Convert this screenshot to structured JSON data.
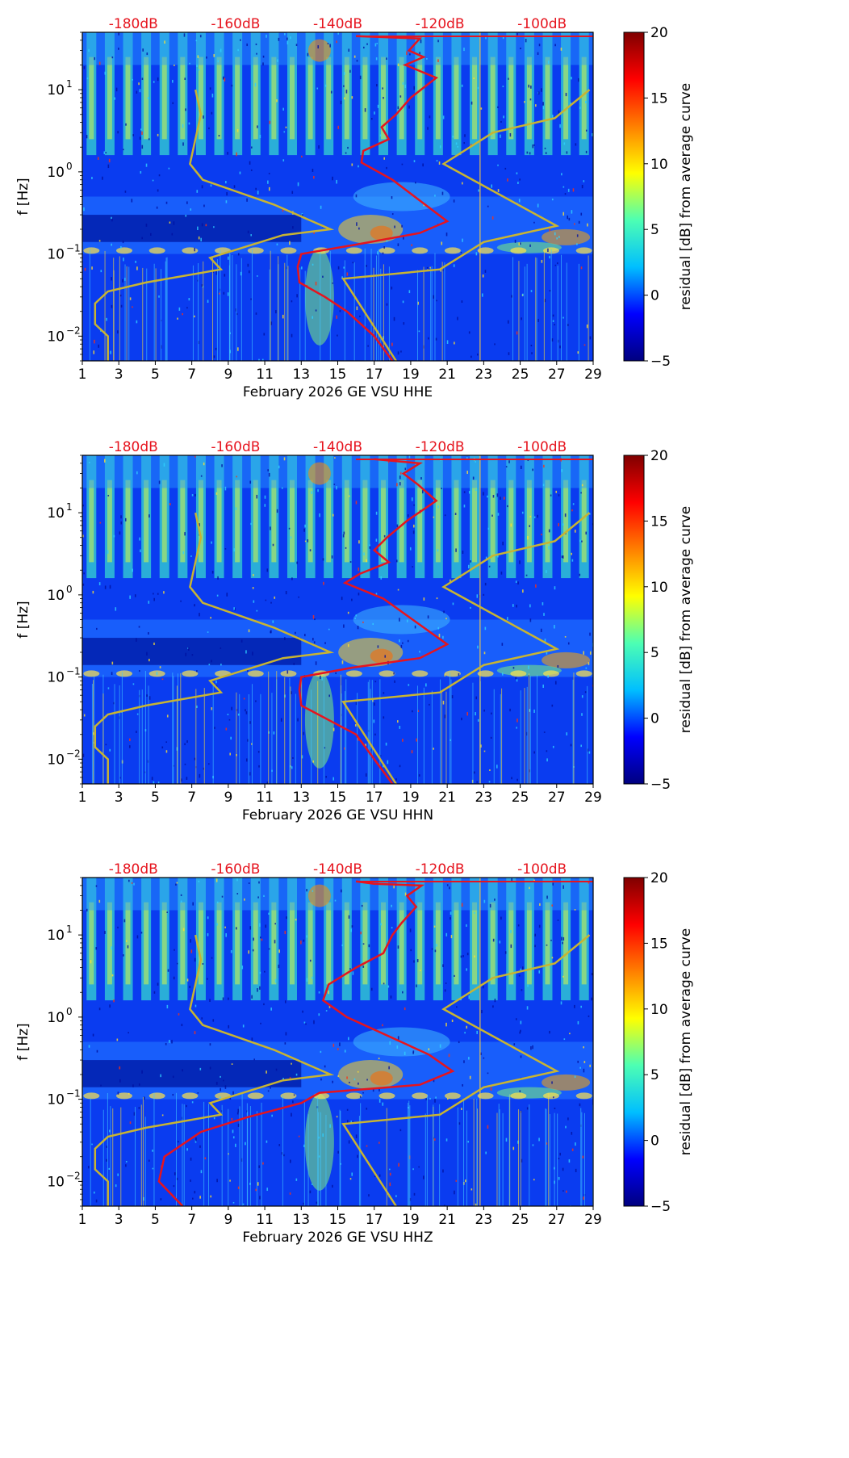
{
  "colors": {
    "noise_model": "#c8b432",
    "median": "#e6141e",
    "db_label": "#e6141e",
    "colormap": [
      "#00007f",
      "#0000ff",
      "#00bfff",
      "#4dffb3",
      "#ffff00",
      "#ff7f00",
      "#ff0000",
      "#7f0000"
    ]
  },
  "chart_data": [
    {
      "type": "heatmap",
      "channel": "HHE",
      "title": "",
      "xlabel": "February 2026 GE VSU  HHE",
      "ylabel": "f [Hz]",
      "x_ticks": [
        "1",
        "3",
        "5",
        "7",
        "9",
        "11",
        "13",
        "15",
        "17",
        "19",
        "21",
        "23",
        "25",
        "27",
        "29"
      ],
      "x_range": [
        1,
        29
      ],
      "y_range_hz": [
        0.005,
        50
      ],
      "y_ticks": [
        {
          "exp": -2,
          "label": "10",
          "sup": "−2",
          "value": 0.01
        },
        {
          "exp": -1,
          "label": "10",
          "sup": "−1",
          "value": 0.1
        },
        {
          "exp": 0,
          "label": "10",
          "sup": "0",
          "value": 1
        },
        {
          "exp": 1,
          "label": "10",
          "sup": "1",
          "value": 10
        }
      ],
      "top_labels": [
        "-180dB",
        "-160dB",
        "-140dB",
        "-120dB",
        "-100dB"
      ],
      "top_label_positions_day": [
        3.8,
        9.4,
        15.0,
        20.6,
        26.2
      ],
      "colorbar": {
        "label": "residual [dB] from average curve",
        "ticks": [
          "20",
          "15",
          "10",
          "5",
          "0",
          "−5"
        ],
        "min": -5,
        "max": 20
      },
      "noise_model_curve": [
        {
          "day": 7.2,
          "f": 10
        },
        {
          "day": 7.5,
          "f": 5
        },
        {
          "day": 6.9,
          "f": 1.25
        },
        {
          "day": 7.6,
          "f": 0.8
        },
        {
          "day": 11.5,
          "f": 0.4
        },
        {
          "day": 14.6,
          "f": 0.2
        },
        {
          "day": 12.0,
          "f": 0.17
        },
        {
          "day": 8.0,
          "f": 0.09
        },
        {
          "day": 8.6,
          "f": 0.065
        },
        {
          "day": 4.5,
          "f": 0.045
        },
        {
          "day": 2.4,
          "f": 0.035
        },
        {
          "day": 1.7,
          "f": 0.025
        },
        {
          "day": 1.7,
          "f": 0.014
        },
        {
          "day": 2.4,
          "f": 0.01
        },
        {
          "day": 2.4,
          "f": 0.005
        }
      ],
      "noise_model_curve_right": [
        {
          "day": 28.8,
          "f": 10
        },
        {
          "day": 26.9,
          "f": 4.5
        },
        {
          "day": 23.5,
          "f": 3
        },
        {
          "day": 20.8,
          "f": 1.25
        },
        {
          "day": 27.0,
          "f": 0.22
        },
        {
          "day": 23.0,
          "f": 0.14
        },
        {
          "day": 20.6,
          "f": 0.065
        },
        {
          "day": 15.3,
          "f": 0.05
        },
        {
          "day": 18.2,
          "f": 0.005
        }
      ],
      "median_curve": [
        {
          "day": 16.0,
          "f": 45
        },
        {
          "day": 19.5,
          "f": 42
        },
        {
          "day": 18.9,
          "f": 30
        },
        {
          "day": 19.7,
          "f": 25
        },
        {
          "day": 18.7,
          "f": 20
        },
        {
          "day": 20.4,
          "f": 14
        },
        {
          "day": 19.0,
          "f": 8
        },
        {
          "day": 18.2,
          "f": 5
        },
        {
          "day": 17.4,
          "f": 3.5
        },
        {
          "day": 17.8,
          "f": 2.5
        },
        {
          "day": 16.4,
          "f": 1.8
        },
        {
          "day": 16.3,
          "f": 1.3
        },
        {
          "day": 18.0,
          "f": 0.8
        },
        {
          "day": 21.0,
          "f": 0.25
        },
        {
          "day": 19.5,
          "f": 0.18
        },
        {
          "day": 16.0,
          "f": 0.13
        },
        {
          "day": 13.0,
          "f": 0.1
        },
        {
          "day": 12.8,
          "f": 0.07
        },
        {
          "day": 12.9,
          "f": 0.045
        },
        {
          "day": 14.3,
          "f": 0.03
        },
        {
          "day": 15.5,
          "f": 0.02
        },
        {
          "day": 17.0,
          "f": 0.01
        },
        {
          "day": 18.0,
          "f": 0.005
        }
      ]
    },
    {
      "type": "heatmap",
      "channel": "HHN",
      "title": "",
      "xlabel": "February 2026 GE VSU  HHN",
      "ylabel": "f [Hz]",
      "x_ticks": [
        "1",
        "3",
        "5",
        "7",
        "9",
        "11",
        "13",
        "15",
        "17",
        "19",
        "21",
        "23",
        "25",
        "27",
        "29"
      ],
      "x_range": [
        1,
        29
      ],
      "y_range_hz": [
        0.005,
        50
      ],
      "y_ticks": [
        {
          "exp": -2,
          "label": "10",
          "sup": "−2",
          "value": 0.01
        },
        {
          "exp": -1,
          "label": "10",
          "sup": "−1",
          "value": 0.1
        },
        {
          "exp": 0,
          "label": "10",
          "sup": "0",
          "value": 1
        },
        {
          "exp": 1,
          "label": "10",
          "sup": "1",
          "value": 10
        }
      ],
      "top_labels": [
        "-180dB",
        "-160dB",
        "-140dB",
        "-120dB",
        "-100dB"
      ],
      "top_label_positions_day": [
        3.8,
        9.4,
        15.0,
        20.6,
        26.2
      ],
      "colorbar": {
        "label": "residual [dB] from average curve",
        "ticks": [
          "20",
          "15",
          "10",
          "5",
          "0",
          "−5"
        ],
        "min": -5,
        "max": 20
      },
      "noise_model_curve": [
        {
          "day": 7.2,
          "f": 10
        },
        {
          "day": 7.5,
          "f": 5
        },
        {
          "day": 6.9,
          "f": 1.25
        },
        {
          "day": 7.6,
          "f": 0.8
        },
        {
          "day": 11.5,
          "f": 0.4
        },
        {
          "day": 14.6,
          "f": 0.2
        },
        {
          "day": 12.0,
          "f": 0.17
        },
        {
          "day": 8.0,
          "f": 0.09
        },
        {
          "day": 8.6,
          "f": 0.065
        },
        {
          "day": 4.5,
          "f": 0.045
        },
        {
          "day": 2.4,
          "f": 0.035
        },
        {
          "day": 1.7,
          "f": 0.025
        },
        {
          "day": 1.7,
          "f": 0.014
        },
        {
          "day": 2.4,
          "f": 0.01
        },
        {
          "day": 2.4,
          "f": 0.005
        }
      ],
      "noise_model_curve_right": [
        {
          "day": 28.8,
          "f": 10
        },
        {
          "day": 26.9,
          "f": 4.5
        },
        {
          "day": 23.5,
          "f": 3
        },
        {
          "day": 20.8,
          "f": 1.25
        },
        {
          "day": 27.0,
          "f": 0.22
        },
        {
          "day": 23.0,
          "f": 0.14
        },
        {
          "day": 20.6,
          "f": 0.065
        },
        {
          "day": 15.3,
          "f": 0.05
        },
        {
          "day": 18.2,
          "f": 0.005
        }
      ],
      "median_curve": [
        {
          "day": 17.0,
          "f": 45
        },
        {
          "day": 19.5,
          "f": 40
        },
        {
          "day": 18.6,
          "f": 30
        },
        {
          "day": 19.4,
          "f": 22
        },
        {
          "day": 20.4,
          "f": 14
        },
        {
          "day": 18.8,
          "f": 8
        },
        {
          "day": 17.7,
          "f": 5
        },
        {
          "day": 17.0,
          "f": 3.5
        },
        {
          "day": 17.8,
          "f": 2.5
        },
        {
          "day": 16.2,
          "f": 1.8
        },
        {
          "day": 15.4,
          "f": 1.4
        },
        {
          "day": 17.5,
          "f": 0.9
        },
        {
          "day": 21.0,
          "f": 0.25
        },
        {
          "day": 19.5,
          "f": 0.17
        },
        {
          "day": 15.8,
          "f": 0.13
        },
        {
          "day": 13.0,
          "f": 0.1
        },
        {
          "day": 12.9,
          "f": 0.07
        },
        {
          "day": 13.0,
          "f": 0.045
        },
        {
          "day": 14.5,
          "f": 0.03
        },
        {
          "day": 16.0,
          "f": 0.02
        },
        {
          "day": 17.0,
          "f": 0.01
        },
        {
          "day": 18.0,
          "f": 0.005
        }
      ]
    },
    {
      "type": "heatmap",
      "channel": "HHZ",
      "title": "",
      "xlabel": "February 2026 GE VSU  HHZ",
      "ylabel": "f [Hz]",
      "x_ticks": [
        "1",
        "3",
        "5",
        "7",
        "9",
        "11",
        "13",
        "15",
        "17",
        "19",
        "21",
        "23",
        "25",
        "27",
        "29"
      ],
      "x_range": [
        1,
        29
      ],
      "y_range_hz": [
        0.005,
        50
      ],
      "y_ticks": [
        {
          "exp": -2,
          "label": "10",
          "sup": "−2",
          "value": 0.01
        },
        {
          "exp": -1,
          "label": "10",
          "sup": "−1",
          "value": 0.1
        },
        {
          "exp": 0,
          "label": "10",
          "sup": "0",
          "value": 1
        },
        {
          "exp": 1,
          "label": "10",
          "sup": "1",
          "value": 10
        }
      ],
      "top_labels": [
        "-180dB",
        "-160dB",
        "-140dB",
        "-120dB",
        "-100dB"
      ],
      "top_label_positions_day": [
        3.8,
        9.4,
        15.0,
        20.6,
        26.2
      ],
      "colorbar": {
        "label": "residual [dB] from average curve",
        "ticks": [
          "20",
          "15",
          "10",
          "5",
          "0",
          "−5"
        ],
        "min": -5,
        "max": 20
      },
      "noise_model_curve": [
        {
          "day": 7.2,
          "f": 10
        },
        {
          "day": 7.5,
          "f": 5
        },
        {
          "day": 6.9,
          "f": 1.25
        },
        {
          "day": 7.6,
          "f": 0.8
        },
        {
          "day": 11.5,
          "f": 0.4
        },
        {
          "day": 14.6,
          "f": 0.2
        },
        {
          "day": 12.0,
          "f": 0.17
        },
        {
          "day": 8.0,
          "f": 0.09
        },
        {
          "day": 8.6,
          "f": 0.065
        },
        {
          "day": 4.5,
          "f": 0.045
        },
        {
          "day": 2.4,
          "f": 0.035
        },
        {
          "day": 1.7,
          "f": 0.025
        },
        {
          "day": 1.7,
          "f": 0.014
        },
        {
          "day": 2.4,
          "f": 0.01
        },
        {
          "day": 2.4,
          "f": 0.005
        }
      ],
      "noise_model_curve_right": [
        {
          "day": 28.8,
          "f": 10
        },
        {
          "day": 26.9,
          "f": 4.5
        },
        {
          "day": 23.5,
          "f": 3
        },
        {
          "day": 20.8,
          "f": 1.25
        },
        {
          "day": 27.0,
          "f": 0.22
        },
        {
          "day": 23.0,
          "f": 0.14
        },
        {
          "day": 20.6,
          "f": 0.065
        },
        {
          "day": 15.3,
          "f": 0.05
        },
        {
          "day": 18.2,
          "f": 0.005
        }
      ],
      "median_curve": [
        {
          "day": 16.0,
          "f": 45
        },
        {
          "day": 17.0,
          "f": 42
        },
        {
          "day": 19.6,
          "f": 40
        },
        {
          "day": 18.8,
          "f": 30
        },
        {
          "day": 19.3,
          "f": 22
        },
        {
          "day": 18.5,
          "f": 14
        },
        {
          "day": 18.0,
          "f": 10
        },
        {
          "day": 17.5,
          "f": 6
        },
        {
          "day": 16.0,
          "f": 4
        },
        {
          "day": 14.5,
          "f": 2.5
        },
        {
          "day": 14.2,
          "f": 1.6
        },
        {
          "day": 15.5,
          "f": 1.0
        },
        {
          "day": 20.0,
          "f": 0.35
        },
        {
          "day": 21.3,
          "f": 0.22
        },
        {
          "day": 19.5,
          "f": 0.15
        },
        {
          "day": 14.0,
          "f": 0.12
        },
        {
          "day": 13.0,
          "f": 0.09
        },
        {
          "day": 10.0,
          "f": 0.06
        },
        {
          "day": 7.5,
          "f": 0.04
        },
        {
          "day": 5.5,
          "f": 0.02
        },
        {
          "day": 5.2,
          "f": 0.01
        },
        {
          "day": 6.5,
          "f": 0.005
        }
      ]
    }
  ]
}
